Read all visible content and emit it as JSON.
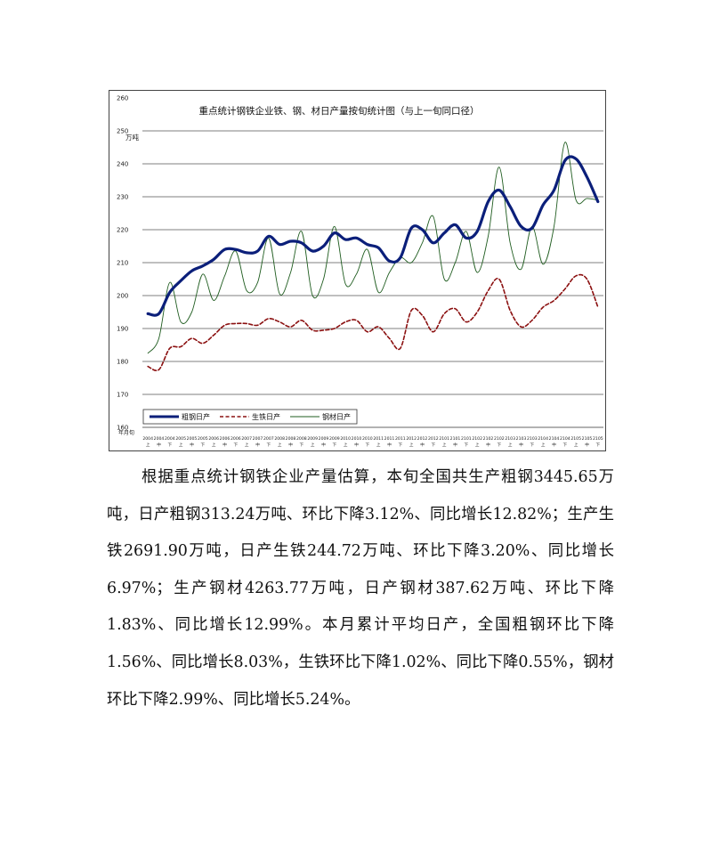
{
  "chart_data": {
    "type": "line",
    "title": "重点统计钢铁企业铁、钢、材日产量按旬统计图（与上一旬同口径）",
    "ylabel": "万吨",
    "xlabel": "年月旬",
    "ylim": [
      160,
      260
    ],
    "yticks": [
      "160",
      "170",
      "180",
      "190",
      "200",
      "210",
      "220",
      "230",
      "240",
      "250",
      "260"
    ],
    "grid": true,
    "legend_position": "bottom-left",
    "categories": [
      {
        "period": "2004",
        "dekad": "上"
      },
      {
        "period": "2004",
        "dekad": "中"
      },
      {
        "period": "2004",
        "dekad": "下"
      },
      {
        "period": "2005",
        "dekad": "上"
      },
      {
        "period": "2005",
        "dekad": "中"
      },
      {
        "period": "2005",
        "dekad": "下"
      },
      {
        "period": "2006",
        "dekad": "上"
      },
      {
        "period": "2006",
        "dekad": "中"
      },
      {
        "period": "2006",
        "dekad": "下"
      },
      {
        "period": "2007",
        "dekad": "上"
      },
      {
        "period": "2007",
        "dekad": "中"
      },
      {
        "period": "2007",
        "dekad": "下"
      },
      {
        "period": "2008",
        "dekad": "上"
      },
      {
        "period": "2008",
        "dekad": "中"
      },
      {
        "period": "2008",
        "dekad": "下"
      },
      {
        "period": "2009",
        "dekad": "上"
      },
      {
        "period": "2009",
        "dekad": "中"
      },
      {
        "period": "2009",
        "dekad": "下"
      },
      {
        "period": "2010",
        "dekad": "上"
      },
      {
        "period": "2010",
        "dekad": "中"
      },
      {
        "period": "2010",
        "dekad": "下"
      },
      {
        "period": "2011",
        "dekad": "上"
      },
      {
        "period": "2011",
        "dekad": "中"
      },
      {
        "period": "2011",
        "dekad": "下"
      },
      {
        "period": "2012",
        "dekad": "上"
      },
      {
        "period": "2012",
        "dekad": "中"
      },
      {
        "period": "2012",
        "dekad": "下"
      },
      {
        "period": "2101",
        "dekad": "上"
      },
      {
        "period": "2101",
        "dekad": "中"
      },
      {
        "period": "2101",
        "dekad": "下"
      },
      {
        "period": "2102",
        "dekad": "上"
      },
      {
        "period": "2102",
        "dekad": "中"
      },
      {
        "period": "2102",
        "dekad": "下"
      },
      {
        "period": "2103",
        "dekad": "上"
      },
      {
        "period": "2103",
        "dekad": "中"
      },
      {
        "period": "2103",
        "dekad": "下"
      },
      {
        "period": "2104",
        "dekad": "上"
      },
      {
        "period": "2104",
        "dekad": "中"
      },
      {
        "period": "2104",
        "dekad": "下"
      },
      {
        "period": "2105",
        "dekad": "上"
      },
      {
        "period": "2105",
        "dekad": "中"
      },
      {
        "period": "2105",
        "dekad": "下"
      }
    ],
    "series": [
      {
        "name": "粗钢日产",
        "color": "#0b1f7a",
        "style": "solid-thick",
        "values": [
          194.5,
          194.5,
          201,
          204.5,
          207.5,
          209,
          211,
          214,
          214,
          213,
          213.5,
          218,
          215.5,
          216.5,
          216,
          213.5,
          215,
          219,
          217,
          217.5,
          215.5,
          214.5,
          210.5,
          211.5,
          220.5,
          220,
          216,
          219,
          221.5,
          217.5,
          219.5,
          228.5,
          232,
          227,
          221,
          220.5,
          227.5,
          232,
          241,
          241.5,
          236,
          228.5
        ]
      },
      {
        "name": "生铁日产",
        "color": "#8b1010",
        "style": "dashed",
        "values": [
          178.5,
          177.5,
          184,
          184.5,
          187,
          185.5,
          188,
          191,
          191.5,
          191.5,
          191,
          193,
          192,
          190.5,
          192.5,
          189.5,
          189.5,
          190,
          192,
          192.5,
          189,
          190.5,
          187,
          184,
          195.5,
          194,
          189,
          194.5,
          196,
          192,
          195,
          201.5,
          205,
          195.5,
          190.5,
          192.5,
          196.5,
          198.5,
          202,
          206,
          205,
          196.5
        ]
      },
      {
        "name": "钢材日产",
        "color": "#1f5c1f",
        "style": "solid-thin",
        "values": [
          182.5,
          187,
          204,
          192,
          195,
          206.5,
          198.5,
          206,
          213.5,
          201.5,
          204,
          217.5,
          200.5,
          207,
          219.5,
          200,
          205,
          221,
          203.5,
          206.5,
          214,
          201,
          207,
          211.5,
          210,
          216,
          224,
          205,
          210,
          219.5,
          207,
          218,
          239,
          216,
          208,
          221,
          209.5,
          221,
          246.5,
          229,
          229.5,
          229
        ]
      }
    ]
  },
  "body_text": "根据重点统计钢铁企业产量估算，本旬全国共生产粗钢3445.65万吨，日产粗钢313.24万吨、环比下降3.12%、同比增长12.82%；生产生铁2691.90万吨，日产生铁244.72万吨、环比下降3.20%、同比增长6.97%；生产钢材4263.77万吨，日产钢材387.62万吨、环比下降1.83%、同比增长12.99%。本月累计平均日产，全国粗钢环比下降1.56%、同比增长8.03%，生铁环比下降1.02%、同比下降0.55%，钢材环比下降2.99%、同比增长5.24%。"
}
